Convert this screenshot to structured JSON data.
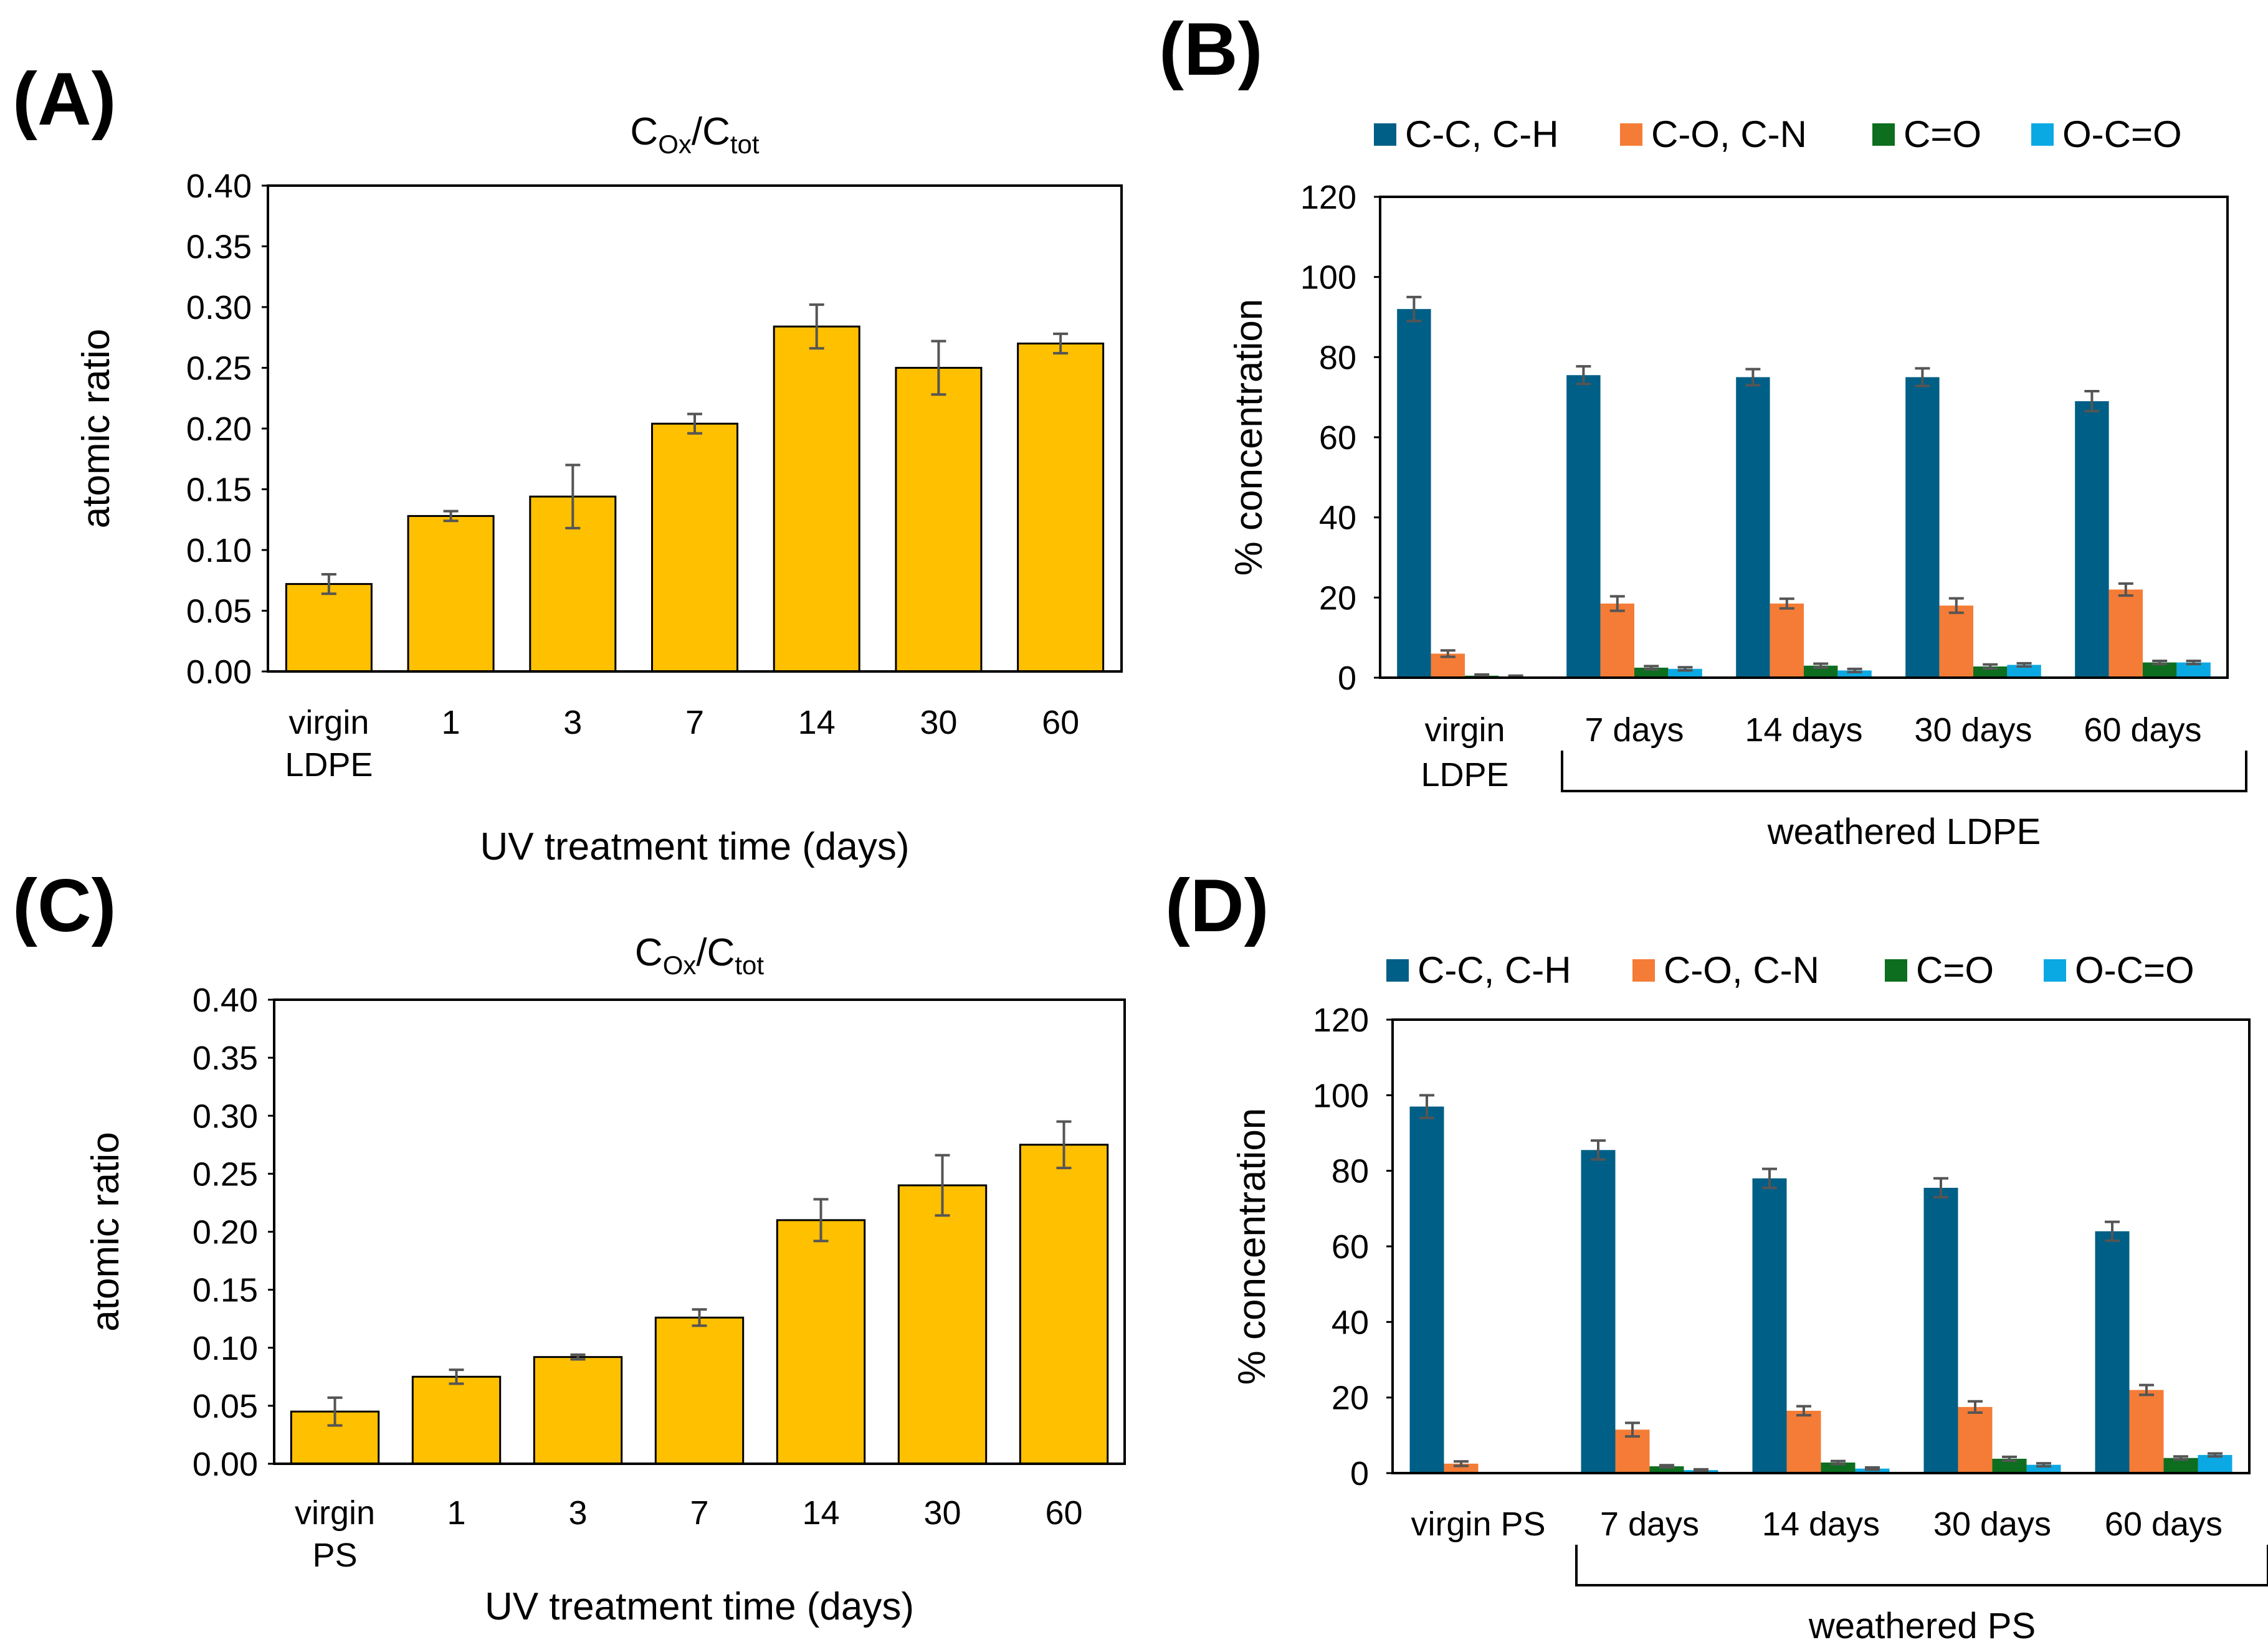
{
  "colors": {
    "bar_yellow": "#FFC000",
    "series": [
      "#005F86",
      "#F47C36",
      "#0D6E1F",
      "#0BA9E3"
    ],
    "error_bar": "#555555"
  },
  "chart_data": [
    {
      "panel": "(A)",
      "type": "bar",
      "title": {
        "main": "C",
        "sub1": "Ox",
        "mid": "/C",
        "sub2": "tot"
      },
      "categories": [
        [
          "virgin",
          "LDPE"
        ],
        [
          "1"
        ],
        [
          "3"
        ],
        [
          "7"
        ],
        [
          "14"
        ],
        [
          "30"
        ],
        [
          "60"
        ]
      ],
      "values": [
        0.072,
        0.128,
        0.144,
        0.204,
        0.284,
        0.25,
        0.27
      ],
      "errors": [
        0.008,
        0.004,
        0.026,
        0.008,
        0.018,
        0.022,
        0.008
      ],
      "xlabel": "UV treatment time (days)",
      "ylabel": "atomic ratio",
      "ylim": [
        0,
        0.4
      ],
      "yticks": [
        "0.00",
        "0.05",
        "0.10",
        "0.15",
        "0.20",
        "0.25",
        "0.30",
        "0.35",
        "0.40"
      ]
    },
    {
      "panel": "(B)",
      "type": "bar",
      "legend": [
        "C-C, C-H",
        "C-O, C-N",
        "C=O",
        "O-C=O"
      ],
      "legend_position": "top",
      "categories": [
        [
          "virgin",
          "LDPE"
        ],
        [
          "7 days"
        ],
        [
          "14 days"
        ],
        [
          "30 days"
        ],
        [
          "60 days"
        ]
      ],
      "series": [
        {
          "name": "C-C, C-H",
          "values": [
            92,
            75.5,
            75,
            75,
            69
          ],
          "errors": [
            3,
            2.2,
            2,
            2.2,
            2.5
          ]
        },
        {
          "name": "C-O, C-N",
          "values": [
            6,
            18.5,
            18.5,
            18,
            22
          ],
          "errors": [
            0.8,
            1.8,
            1.2,
            1.8,
            1.5
          ]
        },
        {
          "name": "C=O",
          "values": [
            0.5,
            2.5,
            3,
            2.8,
            3.8
          ],
          "errors": [
            0.3,
            0.4,
            0.5,
            0.5,
            0.4
          ]
        },
        {
          "name": "O-C=O",
          "values": [
            0.3,
            2.2,
            1.8,
            3.2,
            3.8
          ],
          "errors": [
            0.2,
            0.4,
            0.4,
            0.4,
            0.4
          ]
        }
      ],
      "ylabel": "% concentration",
      "ylim": [
        0,
        120
      ],
      "yticks": [
        "0",
        "20",
        "40",
        "60",
        "80",
        "100",
        "120"
      ],
      "group_label": "weathered LDPE"
    },
    {
      "panel": "(C)",
      "type": "bar",
      "title": {
        "main": "C",
        "sub1": "Ox",
        "mid": "/C",
        "sub2": "tot"
      },
      "categories": [
        [
          "virgin",
          "PS"
        ],
        [
          "1"
        ],
        [
          "3"
        ],
        [
          "7"
        ],
        [
          "14"
        ],
        [
          "30"
        ],
        [
          "60"
        ]
      ],
      "values": [
        0.045,
        0.075,
        0.092,
        0.126,
        0.21,
        0.24,
        0.275
      ],
      "errors": [
        0.012,
        0.006,
        0.002,
        0.007,
        0.018,
        0.026,
        0.02
      ],
      "xlabel": "UV treatment time (days)",
      "ylabel": "atomic ratio",
      "ylim": [
        0,
        0.4
      ],
      "yticks": [
        "0.00",
        "0.05",
        "0.10",
        "0.15",
        "0.20",
        "0.25",
        "0.30",
        "0.35",
        "0.40"
      ]
    },
    {
      "panel": "(D)",
      "type": "bar",
      "legend": [
        "C-C, C-H",
        "C-O, C-N",
        "C=O",
        "O-C=O"
      ],
      "legend_position": "top",
      "categories": [
        [
          "virgin PS"
        ],
        [
          "7 days"
        ],
        [
          "14 days"
        ],
        [
          "30 days"
        ],
        [
          "60 days"
        ]
      ],
      "series": [
        {
          "name": "C-C, C-H",
          "values": [
            97,
            85.5,
            78,
            75.5,
            64
          ],
          "errors": [
            3,
            2.5,
            2.5,
            2.5,
            2.5
          ]
        },
        {
          "name": "C-O, C-N",
          "values": [
            2.5,
            11.5,
            16.5,
            17.5,
            22
          ],
          "errors": [
            0.6,
            1.8,
            1.2,
            1.5,
            1.3
          ]
        },
        {
          "name": "C=O",
          "values": [
            0,
            1.8,
            2.8,
            3.8,
            4
          ],
          "errors": [
            0,
            0.3,
            0.4,
            0.5,
            0.4
          ]
        },
        {
          "name": "O-C=O",
          "values": [
            0,
            0.8,
            1.2,
            2.2,
            4.8
          ],
          "errors": [
            0,
            0.2,
            0.3,
            0.4,
            0.4
          ]
        }
      ],
      "ylabel": "% concentration",
      "ylim": [
        0,
        120
      ],
      "yticks": [
        "0",
        "20",
        "40",
        "60",
        "80",
        "100",
        "120"
      ],
      "group_label": "weathered PS"
    }
  ]
}
